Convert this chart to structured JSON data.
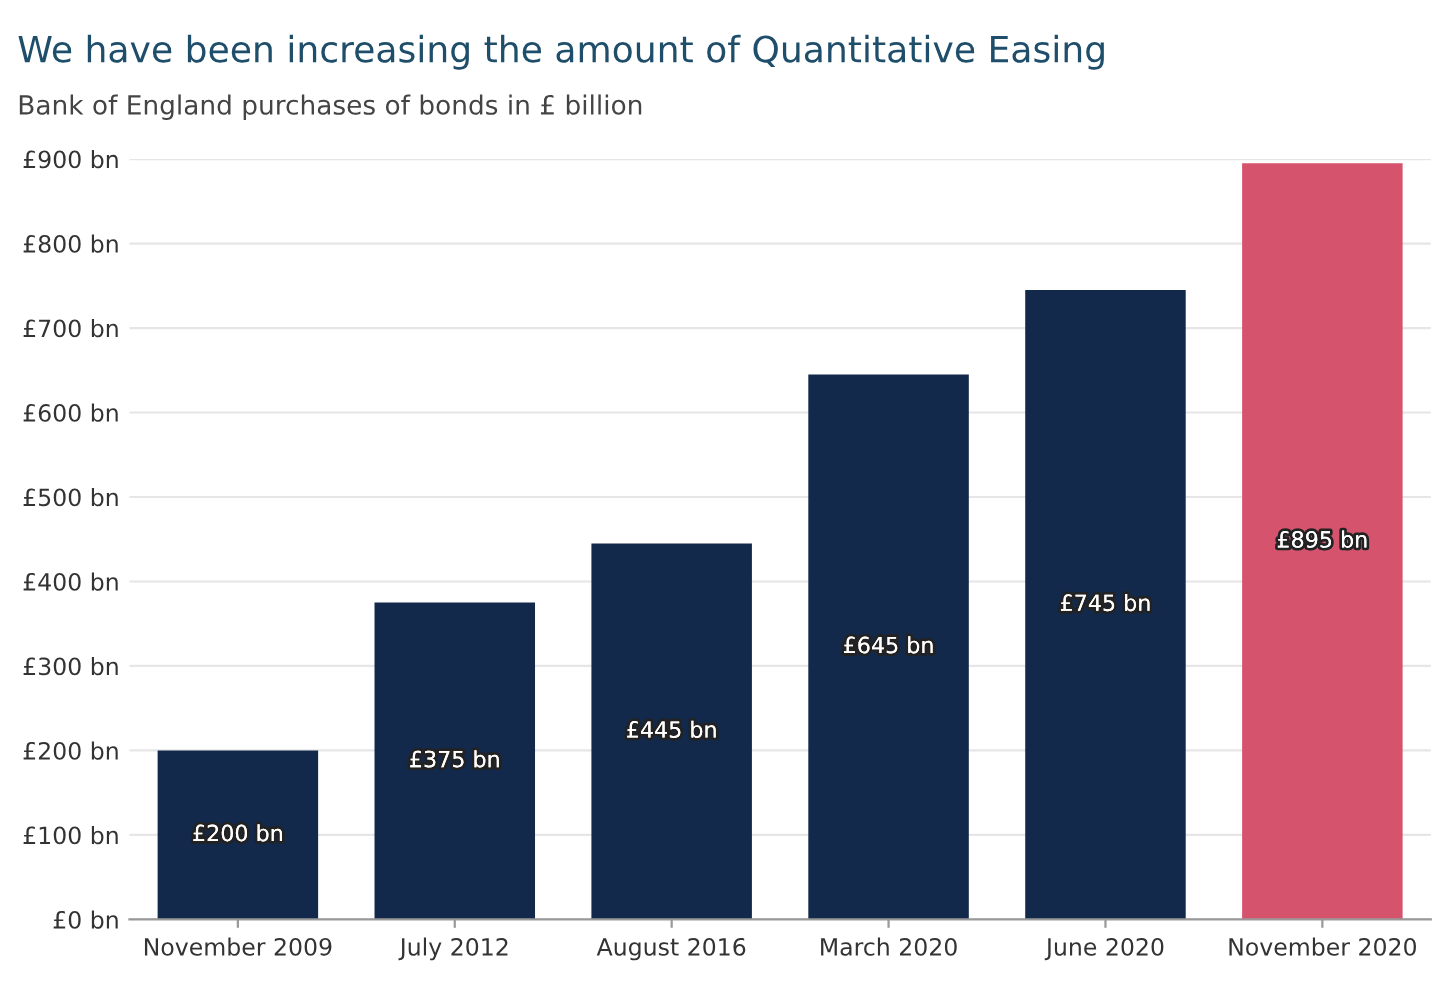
{
  "chart_data": {
    "type": "bar",
    "title": "We have been increasing the amount of Quantitative Easing",
    "subtitle": "Bank of England purchases of bonds in £ billion",
    "categories": [
      "November 2009",
      "July 2012",
      "August 2016",
      "March 2020",
      "June 2020",
      "November 2020"
    ],
    "values": [
      200,
      375,
      445,
      645,
      745,
      895
    ],
    "colors": [
      "#13294b",
      "#13294b",
      "#13294b",
      "#13294b",
      "#13294b",
      "#d6536d"
    ],
    "value_labels": [
      "£200 bn",
      "£375 bn",
      "£445 bn",
      "£645 bn",
      "£745 bn",
      "£895 bn"
    ],
    "ylim": [
      0,
      900
    ],
    "yticks": [
      {
        "value": 0,
        "label": "£0 bn"
      },
      {
        "value": 100,
        "label": "£100 bn"
      },
      {
        "value": 200,
        "label": "£200 bn"
      },
      {
        "value": 300,
        "label": "£300 bn"
      },
      {
        "value": 400,
        "label": "£400 bn"
      },
      {
        "value": 500,
        "label": "£500 bn"
      },
      {
        "value": 600,
        "label": "£600 bn"
      },
      {
        "value": 700,
        "label": "£700 bn"
      },
      {
        "value": 800,
        "label": "£800 bn"
      },
      {
        "value": 900,
        "label": "£900 bn"
      }
    ],
    "grid": "y"
  }
}
